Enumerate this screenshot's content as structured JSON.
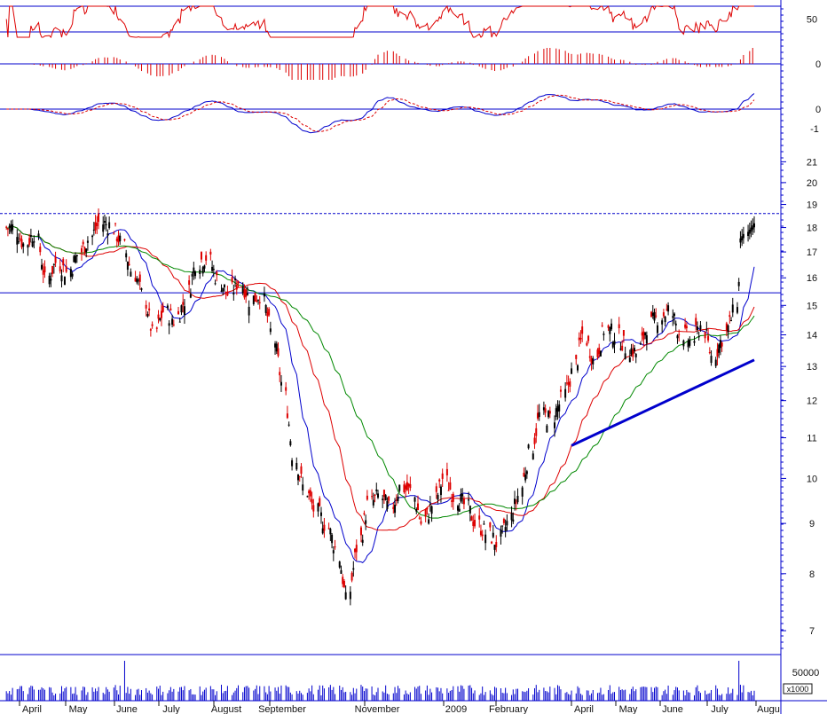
{
  "chart_data": {
    "type": "line",
    "title": "",
    "price_scale": "log",
    "price_axis_ticks": [
      "21",
      "20",
      "19",
      "18",
      "17",
      "16",
      "15",
      "14",
      "13",
      "12",
      "11",
      "10",
      "9",
      "8",
      "7"
    ],
    "ylim": [
      6.8,
      22
    ],
    "volume_axis": {
      "ticks": [
        "50000"
      ],
      "unit_label": "x1000"
    },
    "indicator_axes": [
      {
        "ticks": [
          "50"
        ],
        "levels": [
          35,
          65
        ]
      },
      {
        "ticks": [
          "0"
        ]
      },
      {
        "ticks": [
          "0",
          "-1"
        ]
      }
    ],
    "x_labels": [
      "April",
      "May",
      "June",
      "July",
      "August",
      "September",
      "November",
      "2009",
      "February",
      "April",
      "May",
      "June",
      "July",
      "Augu"
    ],
    "price_series": {
      "name": "",
      "weeks": [
        "2008-04-04",
        "2008-04-11",
        "2008-04-18",
        "2008-04-25",
        "2008-05-02",
        "2008-05-09",
        "2008-05-16",
        "2008-05-23",
        "2008-05-30",
        "2008-06-06",
        "2008-06-13",
        "2008-06-20",
        "2008-06-27",
        "2008-07-04",
        "2008-07-11",
        "2008-07-18",
        "2008-07-25",
        "2008-08-01",
        "2008-08-08",
        "2008-08-15",
        "2008-08-22",
        "2008-08-29",
        "2008-09-05",
        "2008-09-12",
        "2008-09-19",
        "2008-09-26",
        "2008-10-03",
        "2008-10-10",
        "2008-10-17",
        "2008-10-24",
        "2008-10-31",
        "2008-11-07",
        "2008-11-14",
        "2008-11-21",
        "2008-11-28",
        "2008-12-05",
        "2008-12-12",
        "2008-12-19",
        "2008-12-26",
        "2009-01-02",
        "2009-01-09",
        "2009-01-16",
        "2009-01-23",
        "2009-01-30",
        "2009-02-06",
        "2009-02-13",
        "2009-02-20",
        "2009-02-27",
        "2009-03-06",
        "2009-03-13",
        "2009-03-20",
        "2009-03-27",
        "2009-04-03",
        "2009-04-10",
        "2009-04-17",
        "2009-04-24",
        "2009-05-01",
        "2009-05-08",
        "2009-05-15",
        "2009-05-22",
        "2009-05-29",
        "2009-06-05",
        "2009-06-12",
        "2009-06-19",
        "2009-06-26",
        "2009-07-03",
        "2009-07-10",
        "2009-07-17",
        "2009-07-24",
        "2009-07-31"
      ],
      "close": [
        18.0,
        17.3,
        17.8,
        15.9,
        16.6,
        16.2,
        16.9,
        17.5,
        18.2,
        18.1,
        17.4,
        16.3,
        15.4,
        14.0,
        14.8,
        14.5,
        15.2,
        16.6,
        16.8,
        15.9,
        15.4,
        15.9,
        15.2,
        15.4,
        14.1,
        12.5,
        10.6,
        9.8,
        9.3,
        9.0,
        8.5,
        7.5,
        8.5,
        9.4,
        9.6,
        9.3,
        9.8,
        9.7,
        9.0,
        9.4,
        10.0,
        9.6,
        9.4,
        9.0,
        8.8,
        8.6,
        9.0,
        9.6,
        10.6,
        11.6,
        11.5,
        12.0,
        12.8,
        14.0,
        13.2,
        14.2,
        14.0,
        13.6,
        13.4,
        14.3,
        14.6,
        14.8,
        14.1,
        13.8,
        14.3,
        13.3,
        13.9,
        14.7,
        17.3,
        18.2
      ],
      "gap_close": [
        15.9,
        17.5
      ]
    },
    "moving_averages": [
      {
        "name": "",
        "color": "#0000cc"
      },
      {
        "name": "",
        "color": "#dd0000"
      },
      {
        "name": "",
        "color": "#008800"
      }
    ],
    "reference_lines": [
      {
        "value": 18.6,
        "style": "dashed",
        "color": "#0000cc"
      },
      {
        "value": 15.45,
        "style": "solid",
        "color": "#0000cc"
      }
    ],
    "trendline": {
      "from": [
        "2009-04-03",
        10.8
      ],
      "to": [
        "2009-07-31",
        13.2
      ],
      "color": "#0000cc"
    },
    "grid": false,
    "colors": {
      "up": "#000000",
      "down": "#dd0000",
      "frame": "#0000cc",
      "ma1": "#0000cc",
      "ma2": "#dd0000",
      "ma3": "#008800",
      "volume": "#0000cc",
      "histogram": "#dd0000"
    }
  }
}
